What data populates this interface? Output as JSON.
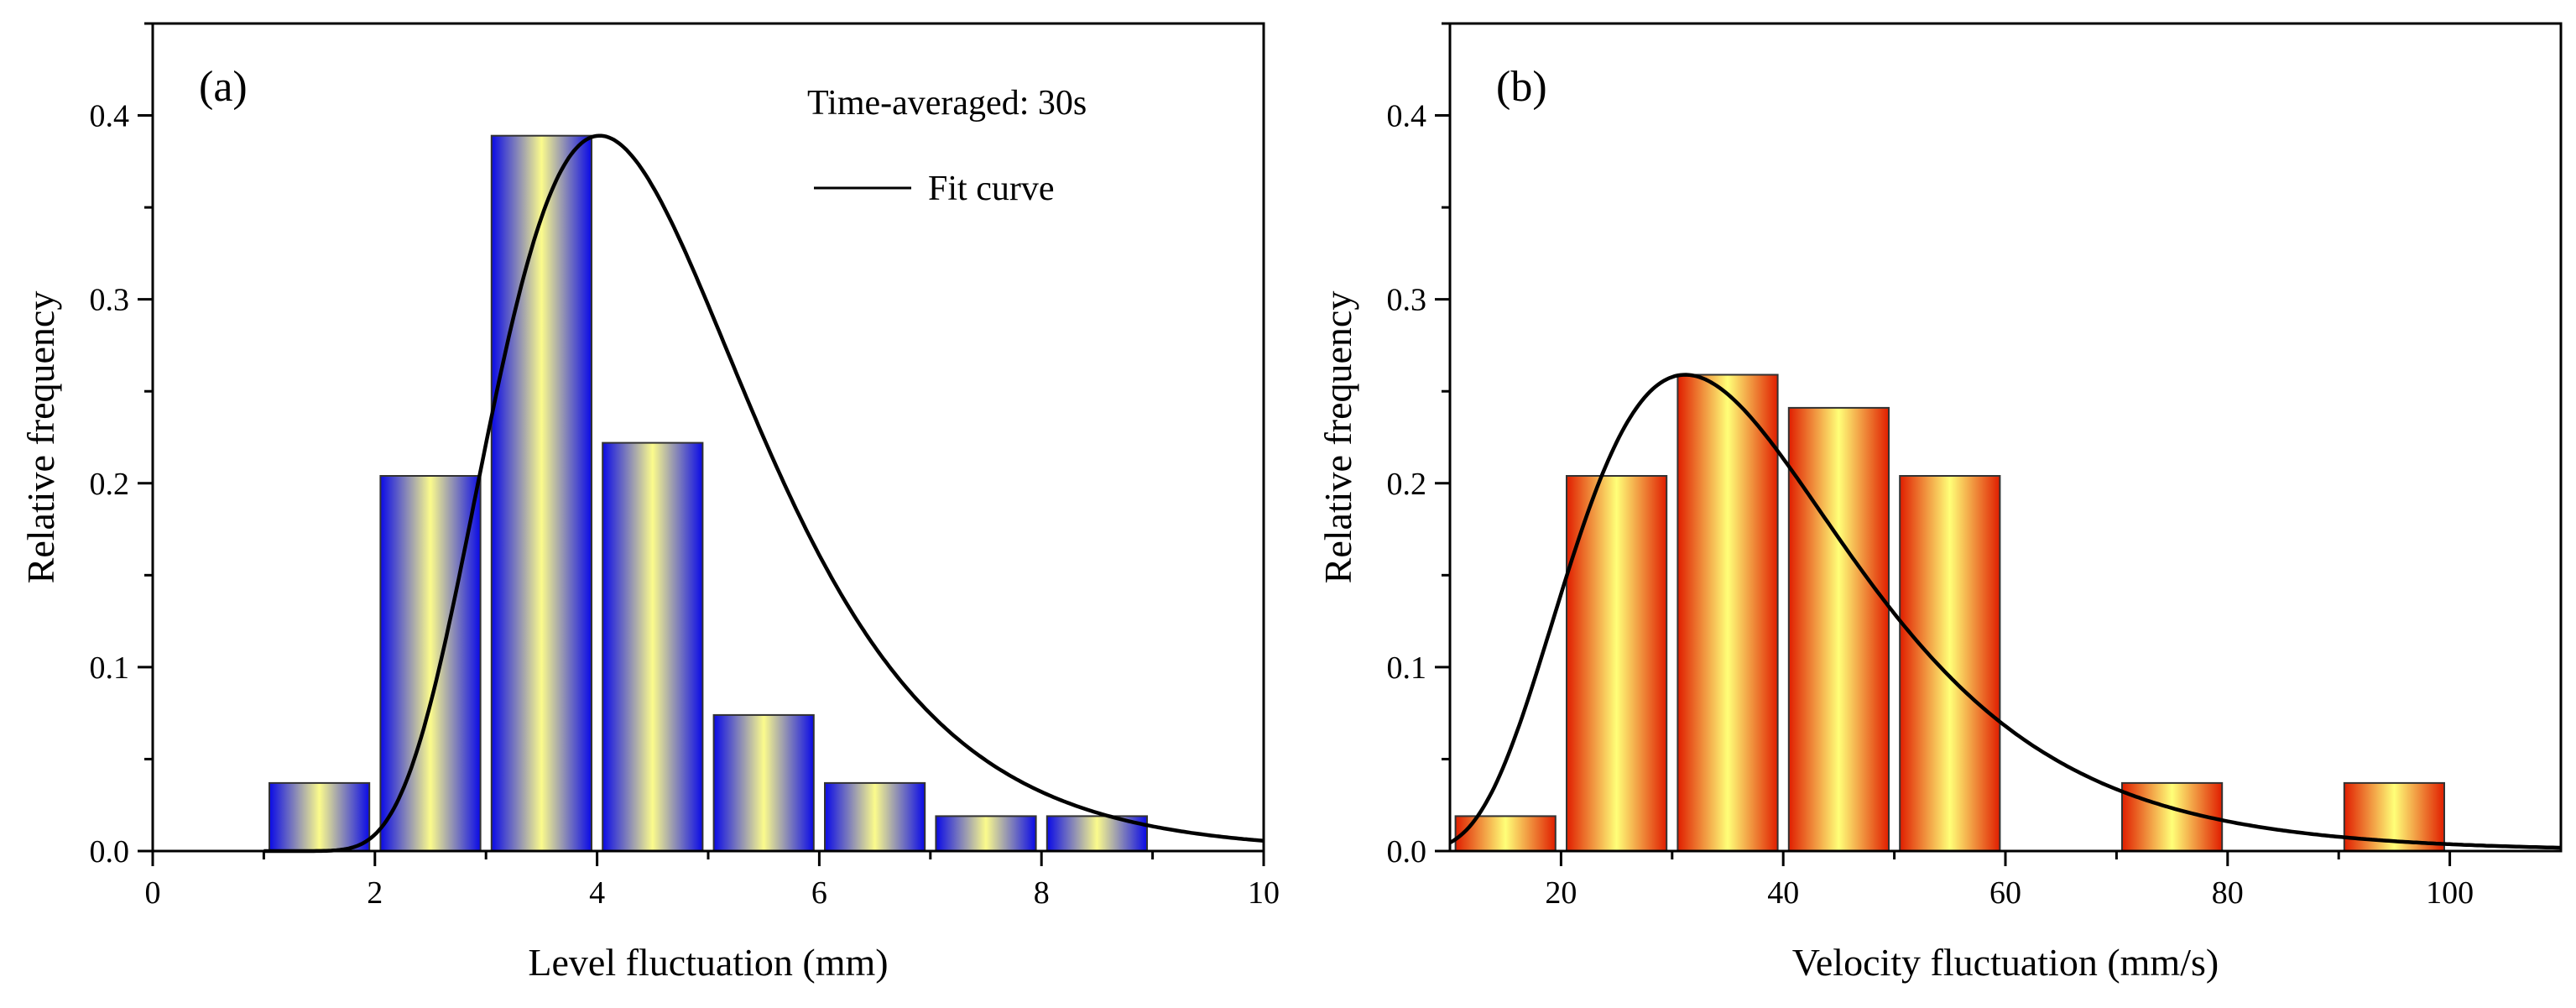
{
  "chart_data": [
    {
      "id": "a",
      "type": "bar",
      "panel_label": "(a)",
      "title": "",
      "xlabel": "Level fluctuation (mm)",
      "ylabel": "Relative frequency",
      "xlim": [
        0,
        10
      ],
      "ylim": [
        0,
        0.45
      ],
      "xticks": [
        0,
        2,
        4,
        6,
        8,
        10
      ],
      "yticks": [
        0.0,
        0.1,
        0.2,
        0.3,
        0.4
      ],
      "xtick_labels": [
        "0",
        "2",
        "4",
        "6",
        "8",
        "10"
      ],
      "ytick_labels": [
        "0.0",
        "0.1",
        "0.2",
        "0.3",
        "0.4"
      ],
      "bin_width": 1,
      "bin_starts": [
        1,
        2,
        3,
        4,
        5,
        6,
        7,
        8
      ],
      "values": [
        0.037,
        0.204,
        0.389,
        0.222,
        0.074,
        0.037,
        0.019,
        0.019
      ],
      "fit_curve": {
        "type": "lognormal",
        "mu": 1.3,
        "sigma": 0.36,
        "offset": 0.8,
        "peak": 0.389,
        "x_start": 1.0,
        "x_end": 10.0
      },
      "annotation": "Time-averaged: 30s",
      "legend": [
        {
          "label": "Fit curve",
          "type": "line"
        }
      ],
      "colors": {
        "bar_edge": "#0a0ae6",
        "bar_center": "#fbfb8c",
        "curve": "#000000"
      }
    },
    {
      "id": "b",
      "type": "bar",
      "panel_label": "(b)",
      "title": "",
      "xlabel": "Velocity fluctuation (mm/s)",
      "ylabel": "Relative frequency",
      "xlim": [
        10,
        110
      ],
      "ylim": [
        0,
        0.45
      ],
      "xticks": [
        20,
        40,
        60,
        80,
        100
      ],
      "yticks": [
        0.0,
        0.1,
        0.2,
        0.3,
        0.4
      ],
      "xtick_labels": [
        "20",
        "40",
        "60",
        "80",
        "100"
      ],
      "ytick_labels": [
        "0.0",
        "0.1",
        "0.2",
        "0.3",
        "0.4"
      ],
      "bin_width": 10,
      "bin_starts": [
        10,
        20,
        30,
        40,
        50,
        60,
        70,
        80,
        90
      ],
      "values": [
        0.019,
        0.204,
        0.259,
        0.241,
        0.204,
        0.0,
        0.037,
        0.0,
        0.037
      ],
      "fit_curve": {
        "type": "lognormal",
        "mu": 3.6,
        "sigma": 0.4,
        "offset": 0,
        "peak": 0.259,
        "x_start": 10,
        "x_end": 110
      },
      "colors": {
        "bar_edge": "#e01e00",
        "bar_center": "#ffff78",
        "curve": "#000000"
      }
    }
  ]
}
